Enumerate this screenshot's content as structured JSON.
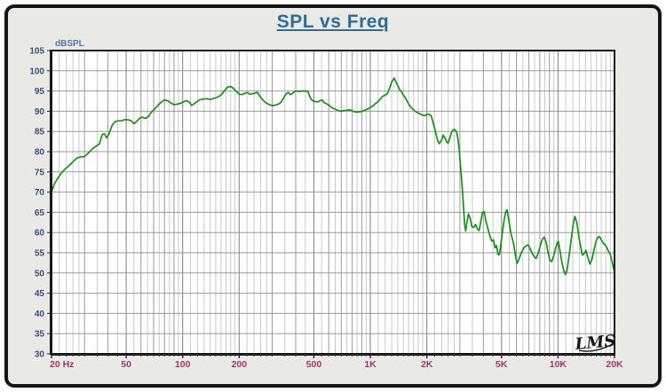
{
  "title": "SPL vs Freq",
  "watermark": "LMS",
  "colors": {
    "frame_bg": "#e9e9e5",
    "title": "#2f6b93",
    "curve": "#1f8b1f",
    "x_tick_label": "#a13568",
    "y_tick_label": "#3d4e78",
    "y_axis_name": "#4a79a8",
    "grid_major": "#9a9a9a",
    "grid_minor": "#cacaca",
    "grid_labeled": "#7e7e7e",
    "plot_border": "#1a1a1a"
  },
  "chart_data": {
    "type": "line",
    "title": "SPL vs Freq",
    "ylabel": "dBSPL",
    "xlabel": "Hz",
    "x_scale": "log",
    "xlim": [
      20,
      20000
    ],
    "ylim": [
      30,
      105
    ],
    "y_tick_step": 5,
    "grid": "on",
    "legend": "none",
    "x_labeled_ticks": [
      {
        "f": 20,
        "label": "20 Hz"
      },
      {
        "f": 50,
        "label": "50"
      },
      {
        "f": 100,
        "label": "100"
      },
      {
        "f": 200,
        "label": "200"
      },
      {
        "f": 500,
        "label": "500"
      },
      {
        "f": 1000,
        "label": "1K"
      },
      {
        "f": 2000,
        "label": "2K"
      },
      {
        "f": 5000,
        "label": "5K"
      },
      {
        "f": 10000,
        "label": "10K"
      },
      {
        "f": 20000,
        "label": "20K"
      }
    ],
    "x_major_gridlines": [
      20,
      30,
      40,
      50,
      60,
      70,
      80,
      90,
      100,
      200,
      300,
      400,
      500,
      600,
      700,
      800,
      900,
      1000,
      2000,
      3000,
      4000,
      5000,
      6000,
      7000,
      8000,
      9000,
      10000,
      20000
    ],
    "x_minor_gridlines": [
      22,
      24,
      26,
      28,
      35,
      45,
      55,
      65,
      75,
      85,
      95,
      110,
      120,
      130,
      140,
      150,
      160,
      170,
      180,
      190,
      220,
      240,
      260,
      280,
      350,
      450,
      550,
      650,
      750,
      850,
      950,
      1100,
      1200,
      1300,
      1400,
      1500,
      1600,
      1700,
      1800,
      1900,
      2200,
      2400,
      2600,
      2800,
      3500,
      4500,
      5500,
      6500,
      7500,
      8500,
      9500,
      11000,
      12000,
      13000,
      14000,
      15000,
      16000,
      17000,
      18000,
      19000
    ],
    "series": [
      {
        "name": "SPL",
        "color": "#1f8b1f",
        "points": [
          [
            20,
            70.0
          ],
          [
            20.7,
            72.0
          ],
          [
            21.5,
            73.3
          ],
          [
            22.5,
            74.6
          ],
          [
            23.5,
            75.6
          ],
          [
            24.8,
            76.5
          ],
          [
            26,
            77.5
          ],
          [
            27.3,
            78.4
          ],
          [
            28.5,
            78.7
          ],
          [
            30,
            78.8
          ],
          [
            31.5,
            79.7
          ],
          [
            33,
            80.7
          ],
          [
            34.5,
            81.3
          ],
          [
            36,
            81.9
          ],
          [
            37.3,
            84.3
          ],
          [
            38.3,
            84.4
          ],
          [
            39.3,
            83.4
          ],
          [
            40.5,
            84.4
          ],
          [
            42,
            86.4
          ],
          [
            43.5,
            87.4
          ],
          [
            45,
            87.6
          ],
          [
            47,
            87.6
          ],
          [
            49,
            87.9
          ],
          [
            51,
            87.9
          ],
          [
            53,
            87.7
          ],
          [
            55,
            86.9
          ],
          [
            57,
            87.5
          ],
          [
            59,
            88.3
          ],
          [
            61,
            88.5
          ],
          [
            63.5,
            88.2
          ],
          [
            66,
            88.8
          ],
          [
            68,
            89.7
          ],
          [
            70,
            90.3
          ],
          [
            72,
            90.9
          ],
          [
            74,
            91.5
          ],
          [
            77,
            92.3
          ],
          [
            80,
            92.8
          ],
          [
            83,
            92.6
          ],
          [
            86,
            92.1
          ],
          [
            90,
            91.6
          ],
          [
            95,
            91.8
          ],
          [
            100,
            92.2
          ],
          [
            104,
            92.6
          ],
          [
            108,
            92.3
          ],
          [
            112,
            91.4
          ],
          [
            117,
            92.1
          ],
          [
            123,
            92.8
          ],
          [
            128,
            93.0
          ],
          [
            134,
            93.1
          ],
          [
            140,
            92.9
          ],
          [
            147,
            93.2
          ],
          [
            154,
            93.5
          ],
          [
            161,
            94.1
          ],
          [
            168,
            95.2
          ],
          [
            174,
            96.0
          ],
          [
            181,
            96.1
          ],
          [
            187,
            95.6
          ],
          [
            194,
            94.8
          ],
          [
            200,
            94.2
          ],
          [
            207,
            94.1
          ],
          [
            214,
            94.4
          ],
          [
            221,
            94.6
          ],
          [
            228,
            94.2
          ],
          [
            236,
            94.3
          ],
          [
            243,
            94.5
          ],
          [
            250,
            94.7
          ],
          [
            257,
            93.8
          ],
          [
            265,
            93.0
          ],
          [
            274,
            92.3
          ],
          [
            284,
            91.8
          ],
          [
            294,
            91.5
          ],
          [
            303,
            91.4
          ],
          [
            312,
            91.5
          ],
          [
            323,
            91.7
          ],
          [
            334,
            92.2
          ],
          [
            345,
            93.3
          ],
          [
            357,
            94.4
          ],
          [
            366,
            94.6
          ],
          [
            375,
            94.1
          ],
          [
            385,
            94.4
          ],
          [
            395,
            94.9
          ],
          [
            407,
            95.0
          ],
          [
            420,
            94.9
          ],
          [
            435,
            95.0
          ],
          [
            450,
            95.0
          ],
          [
            465,
            94.9
          ],
          [
            475,
            93.7
          ],
          [
            485,
            92.9
          ],
          [
            497,
            92.5
          ],
          [
            512,
            92.4
          ],
          [
            525,
            92.3
          ],
          [
            540,
            92.6
          ],
          [
            555,
            92.8
          ],
          [
            565,
            92.2
          ],
          [
            580,
            91.9
          ],
          [
            597,
            91.6
          ],
          [
            615,
            91.1
          ],
          [
            630,
            90.8
          ],
          [
            650,
            90.5
          ],
          [
            672,
            90.2
          ],
          [
            695,
            90.0
          ],
          [
            720,
            90.1
          ],
          [
            745,
            90.2
          ],
          [
            770,
            90.3
          ],
          [
            795,
            90.2
          ],
          [
            815,
            89.9
          ],
          [
            840,
            89.8
          ],
          [
            865,
            89.8
          ],
          [
            890,
            89.9
          ],
          [
            915,
            90.1
          ],
          [
            940,
            90.3
          ],
          [
            965,
            90.5
          ],
          [
            995,
            90.9
          ],
          [
            1025,
            91.2
          ],
          [
            1060,
            91.8
          ],
          [
            1095,
            92.3
          ],
          [
            1130,
            93.0
          ],
          [
            1165,
            93.7
          ],
          [
            1200,
            94.0
          ],
          [
            1235,
            94.4
          ],
          [
            1270,
            95.9
          ],
          [
            1300,
            97.2
          ],
          [
            1340,
            98.2
          ],
          [
            1370,
            97.2
          ],
          [
            1400,
            96.4
          ],
          [
            1430,
            95.3
          ],
          [
            1460,
            95.0
          ],
          [
            1495,
            94.0
          ],
          [
            1540,
            93.3
          ],
          [
            1590,
            92.0
          ],
          [
            1640,
            91.0
          ],
          [
            1700,
            90.3
          ],
          [
            1760,
            89.8
          ],
          [
            1830,
            89.4
          ],
          [
            1900,
            89.0
          ],
          [
            1960,
            88.9
          ],
          [
            2010,
            89.3
          ],
          [
            2060,
            89.2
          ],
          [
            2110,
            88.9
          ],
          [
            2170,
            86.8
          ],
          [
            2230,
            84.6
          ],
          [
            2290,
            82.6
          ],
          [
            2330,
            82.0
          ],
          [
            2400,
            82.9
          ],
          [
            2450,
            84.1
          ],
          [
            2510,
            83.2
          ],
          [
            2560,
            82.3
          ],
          [
            2600,
            82.1
          ],
          [
            2660,
            83.6
          ],
          [
            2720,
            85.0
          ],
          [
            2790,
            85.5
          ],
          [
            2840,
            85.3
          ],
          [
            2890,
            84.6
          ],
          [
            2930,
            83.2
          ],
          [
            2970,
            80.7
          ],
          [
            3010,
            77.5
          ],
          [
            3060,
            73.5
          ],
          [
            3100,
            70.0
          ],
          [
            3140,
            66.0
          ],
          [
            3180,
            62.0
          ],
          [
            3220,
            60.4
          ],
          [
            3270,
            62.5
          ],
          [
            3330,
            64.6
          ],
          [
            3400,
            63.5
          ],
          [
            3480,
            61.4
          ],
          [
            3560,
            61.3
          ],
          [
            3640,
            62.0
          ],
          [
            3720,
            60.9
          ],
          [
            3800,
            60.5
          ],
          [
            3880,
            62.8
          ],
          [
            3960,
            65.0
          ],
          [
            4040,
            65.2
          ],
          [
            4130,
            62.8
          ],
          [
            4230,
            61.0
          ],
          [
            4330,
            59.2
          ],
          [
            4430,
            57.9
          ],
          [
            4530,
            58.2
          ],
          [
            4620,
            56.2
          ],
          [
            4700,
            56.8
          ],
          [
            4790,
            54.6
          ],
          [
            4870,
            54.5
          ],
          [
            4960,
            57.0
          ],
          [
            5060,
            60.3
          ],
          [
            5160,
            63.0
          ],
          [
            5270,
            65.2
          ],
          [
            5350,
            65.6
          ],
          [
            5450,
            63.5
          ],
          [
            5600,
            60.0
          ],
          [
            5800,
            57.2
          ],
          [
            5950,
            54.0
          ],
          [
            6050,
            52.4
          ],
          [
            6200,
            53.5
          ],
          [
            6400,
            55.2
          ],
          [
            6600,
            56.3
          ],
          [
            6800,
            56.8
          ],
          [
            6950,
            56.9
          ],
          [
            7100,
            56.0
          ],
          [
            7300,
            54.8
          ],
          [
            7500,
            53.9
          ],
          [
            7650,
            53.6
          ],
          [
            7850,
            55.0
          ],
          [
            8050,
            56.8
          ],
          [
            8250,
            58.3
          ],
          [
            8450,
            58.9
          ],
          [
            8650,
            57.5
          ],
          [
            8850,
            55.0
          ],
          [
            9050,
            53.2
          ],
          [
            9250,
            52.8
          ],
          [
            9450,
            54.0
          ],
          [
            9700,
            56.0
          ],
          [
            9900,
            57.5
          ],
          [
            10050,
            57.8
          ],
          [
            10250,
            55.5
          ],
          [
            10500,
            52.5
          ],
          [
            10750,
            50.5
          ],
          [
            10950,
            49.6
          ],
          [
            11150,
            50.5
          ],
          [
            11400,
            53.5
          ],
          [
            11700,
            57.5
          ],
          [
            12000,
            61.5
          ],
          [
            12300,
            64.0
          ],
          [
            12600,
            62.5
          ],
          [
            12900,
            59.0
          ],
          [
            13200,
            56.5
          ],
          [
            13500,
            54.4
          ],
          [
            13800,
            54.8
          ],
          [
            14100,
            55.6
          ],
          [
            14400,
            54.0
          ],
          [
            14800,
            52.2
          ],
          [
            15200,
            53.5
          ],
          [
            15600,
            56.0
          ],
          [
            16000,
            58.0
          ],
          [
            16400,
            59.0
          ],
          [
            16700,
            58.9
          ],
          [
            17100,
            58.0
          ],
          [
            17500,
            57.3
          ],
          [
            17800,
            57.0
          ],
          [
            18200,
            56.3
          ],
          [
            18600,
            55.3
          ],
          [
            19000,
            54.6
          ],
          [
            19400,
            52.8
          ],
          [
            19700,
            51.4
          ],
          [
            20000,
            50.2
          ]
        ]
      }
    ]
  }
}
